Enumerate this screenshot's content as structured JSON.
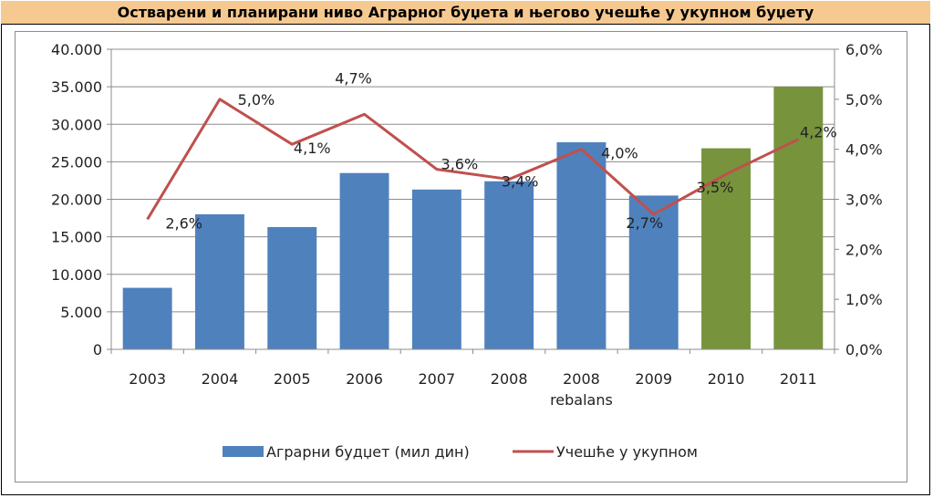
{
  "chart_data": {
    "type": "bar+line",
    "title": "Остварени и планирани ниво Аграрног буџета и његово учешће у укупном буџету",
    "categories": [
      "2003",
      "2004",
      "2005",
      "2006",
      "2007",
      "2008",
      "2008\nrebalans",
      "2009",
      "2010",
      "2011"
    ],
    "series": [
      {
        "name": "Аграрни будџет (мил дин)",
        "type": "bar",
        "axis": "left",
        "values": [
          8200,
          18000,
          16300,
          23500,
          21300,
          22400,
          27600,
          20500,
          26800,
          35000
        ],
        "colors": [
          "#4f81bd",
          "#4f81bd",
          "#4f81bd",
          "#4f81bd",
          "#4f81bd",
          "#4f81bd",
          "#4f81bd",
          "#4f81bd",
          "#77933c",
          "#77933c"
        ]
      },
      {
        "name": "Учешће у укупном",
        "type": "line",
        "axis": "right",
        "color": "#c0504d",
        "values": [
          2.6,
          5.0,
          4.1,
          4.7,
          3.6,
          3.4,
          4.0,
          2.7,
          3.5,
          4.2
        ],
        "labels": [
          "2,6%",
          "5,0%",
          "4,1%",
          "4,7%",
          "3,6%",
          "3,4%",
          "4,0%",
          "2,7%",
          "3,5%",
          "4,2%"
        ]
      }
    ],
    "y_left": {
      "min": 0,
      "max": 40000,
      "ticks": [
        0,
        5000,
        10000,
        15000,
        20000,
        25000,
        30000,
        35000,
        40000
      ],
      "tick_labels": [
        "0",
        "5.000",
        "10.000",
        "15.000",
        "20.000",
        "25.000",
        "30.000",
        "35.000",
        "40.000"
      ]
    },
    "y_right": {
      "min": 0,
      "max": 6,
      "ticks": [
        0,
        1,
        2,
        3,
        4,
        5,
        6
      ],
      "tick_labels": [
        "0,0%",
        "1,0%",
        "2,0%",
        "3,0%",
        "4,0%",
        "5,0%",
        "6,0%"
      ]
    },
    "grid": true,
    "legend_position": "bottom"
  }
}
